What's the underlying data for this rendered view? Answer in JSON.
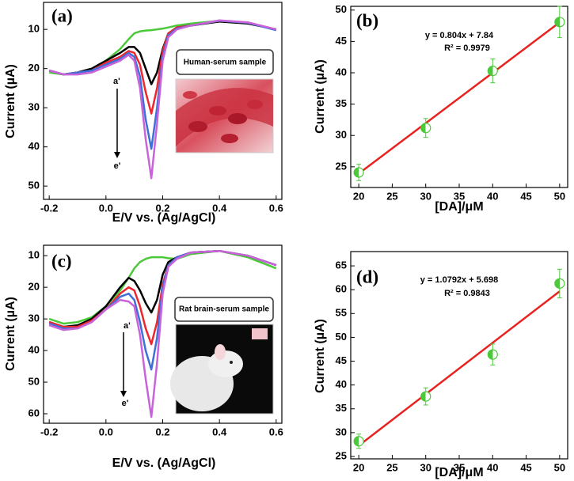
{
  "chart_data": [
    {
      "type": "line",
      "panel_label": "(a)",
      "x_label": "E/V vs. (Ag/AgCl)",
      "y_label": "Current (µA)",
      "inset_label": "Human-serum sample",
      "arrow_start": "a'",
      "arrow_end": "e'",
      "x": [
        -0.2,
        -0.15,
        -0.1,
        -0.05,
        0,
        0.05,
        0.08,
        0.1,
        0.12,
        0.14,
        0.16,
        0.18,
        0.2,
        0.22,
        0.25,
        0.3,
        0.4,
        0.5,
        0.6
      ],
      "xlim": [
        -0.22,
        0.62
      ],
      "xticks": [
        -0.2,
        {
          "value": 0,
          "label": "0.0"
        },
        0.2,
        0.4,
        0.6
      ],
      "ylim": [
        3.1,
        53.4
      ],
      "y_inverted": true,
      "yticks": [
        10,
        20,
        30,
        40,
        50
      ],
      "series": [
        {
          "color": "#4cc93b",
          "values": [
            21,
            21.5,
            21,
            20,
            18,
            15,
            12.5,
            11,
            10.5,
            10.3,
            10.2,
            10,
            9.8,
            9.5,
            9,
            8.5,
            7.8,
            8.3,
            10
          ]
        },
        {
          "color": "#000000",
          "values": [
            20.5,
            21.5,
            21,
            20,
            18,
            16,
            14.5,
            14.5,
            16,
            20,
            24,
            21,
            15,
            11,
            9.5,
            9,
            8,
            8.5,
            10
          ]
        },
        {
          "color": "#f0262e",
          "values": [
            20.5,
            21.5,
            21,
            20.5,
            18.5,
            17,
            15.5,
            16,
            19,
            26,
            31.5,
            25,
            15.5,
            11,
            9.5,
            9,
            7.8,
            8.3,
            10
          ]
        },
        {
          "color": "#3f6fd8",
          "values": [
            20.5,
            21.5,
            21,
            20.5,
            19,
            17.5,
            16,
            17,
            22,
            33,
            40.5,
            30,
            17,
            11.5,
            9.8,
            9,
            7.8,
            8.3,
            10.2
          ]
        },
        {
          "color": "#c863d9",
          "values": [
            20.5,
            21.5,
            21.5,
            21,
            19.5,
            18,
            16.5,
            18,
            25,
            38,
            48,
            34,
            18,
            12,
            10,
            9,
            7.7,
            8.2,
            10
          ]
        }
      ]
    },
    {
      "type": "scatter",
      "panel_label": "(b)",
      "x_label": "[DA]/μM",
      "y_label": "Current (µA)",
      "equation": "y = 0.804x + 7.84",
      "r_squared": "R² = 0.9979",
      "fit": {
        "slope": 0.804,
        "intercept": 7.84,
        "color": "#e8231f"
      },
      "x": [
        20,
        30,
        40,
        50
      ],
      "values": [
        24.1,
        31.2,
        40.3,
        48.1
      ],
      "errors": [
        1.3,
        1.5,
        1.9,
        2.5
      ],
      "color": "#4cc93b",
      "xlim": [
        18.8,
        51.2
      ],
      "xticks": [
        20,
        25,
        30,
        35,
        40,
        45,
        50
      ],
      "ylim": [
        21.7,
        50.6
      ],
      "yticks": [
        25,
        30,
        35,
        40,
        45,
        50
      ]
    },
    {
      "type": "line",
      "panel_label": "(c)",
      "x_label": "E/V vs. (Ag/AgCl)",
      "y_label": "Current (µA)",
      "inset_label": "Rat brain-serum sample",
      "arrow_start": "a'",
      "arrow_end": "e'",
      "x": [
        -0.2,
        -0.15,
        -0.1,
        -0.05,
        0,
        0.05,
        0.08,
        0.1,
        0.12,
        0.14,
        0.16,
        0.18,
        0.2,
        0.22,
        0.25,
        0.3,
        0.4,
        0.5,
        0.6
      ],
      "xlim": [
        -0.22,
        0.62
      ],
      "xticks": [
        -0.2,
        {
          "value": 0,
          "label": "0.0"
        },
        0.2,
        0.4,
        0.6
      ],
      "ylim": [
        6.7,
        63
      ],
      "y_inverted": true,
      "yticks": [
        10,
        20,
        30,
        40,
        50,
        60
      ],
      "series": [
        {
          "color": "#4cc93b",
          "values": [
            30,
            31.5,
            31,
            29.5,
            26,
            21,
            17,
            14,
            12,
            11,
            10.5,
            10.5,
            10.5,
            10.8,
            11,
            9.5,
            8.5,
            10.5,
            14
          ]
        },
        {
          "color": "#000000",
          "values": [
            31,
            32.5,
            32,
            30,
            26,
            20,
            17,
            18,
            21,
            25,
            28,
            24,
            16,
            12,
            10.5,
            9,
            8.5,
            10,
            13
          ]
        },
        {
          "color": "#f0262e",
          "values": [
            31,
            32.5,
            32.5,
            30.5,
            27,
            22,
            20,
            21,
            26,
            33,
            38,
            31,
            19,
            13,
            10.5,
            9,
            8.5,
            10,
            13
          ]
        },
        {
          "color": "#3f6fd8",
          "values": [
            31.5,
            33,
            33,
            31,
            27,
            23,
            22,
            24,
            31,
            40,
            46,
            36,
            20,
            13,
            10.5,
            9,
            8.5,
            10,
            13
          ]
        },
        {
          "color": "#c863d9",
          "values": [
            32,
            33.5,
            33,
            31,
            27,
            24,
            24.5,
            26,
            35,
            49,
            61,
            44,
            22,
            13.5,
            11,
            9,
            8.5,
            10,
            13
          ]
        }
      ]
    },
    {
      "type": "scatter",
      "panel_label": "(d)",
      "x_label": "[DA]/μM",
      "y_label": "Current (µA)",
      "equation": "y = 1.0792x + 5.698",
      "r_squared": "R² = 0.9843",
      "fit": {
        "slope": 1.0792,
        "intercept": 5.698,
        "color": "#e8231f"
      },
      "x": [
        20,
        30,
        40,
        50
      ],
      "values": [
        28.2,
        37.6,
        46.4,
        61.3
      ],
      "errors": [
        1.5,
        1.8,
        2.2,
        3.0
      ],
      "color": "#4cc93b",
      "xlim": [
        18.8,
        51.2
      ],
      "xticks": [
        20,
        25,
        30,
        35,
        40,
        45,
        50
      ],
      "ylim": [
        24.5,
        68
      ],
      "yticks": [
        25,
        30,
        35,
        40,
        45,
        50,
        55,
        60,
        65
      ]
    }
  ]
}
